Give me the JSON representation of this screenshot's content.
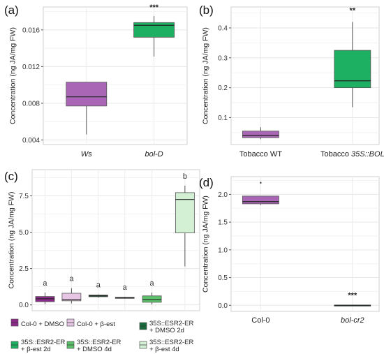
{
  "chart_data": [
    {
      "panel": "(a)",
      "type": "box",
      "ylabel": "Concentration (ng JA/mg FW)",
      "ylim": [
        0.0035,
        0.0185
      ],
      "yticks": [
        0.004,
        0.008,
        0.012,
        0.016
      ],
      "ytick_labels": [
        "0.004",
        "0.008",
        "0.012",
        "0.016"
      ],
      "categories": [
        "Ws",
        "bol-D"
      ],
      "categories_italic": [
        true,
        true
      ],
      "boxes": [
        {
          "min": 0.0046,
          "q1": 0.0077,
          "median": 0.0087,
          "q3": 0.0103,
          "max": 0.0103,
          "color": "#a866b4",
          "outliers": []
        },
        {
          "min": 0.0131,
          "q1": 0.0152,
          "median": 0.0165,
          "q3": 0.0168,
          "max": 0.0175,
          "color": "#1db063",
          "outliers": []
        }
      ],
      "annotations": [
        "",
        "***"
      ]
    },
    {
      "panel": "(b)",
      "type": "box",
      "ylabel": "Concentration (ng JA/mg FW)",
      "ylim": [
        0.01,
        0.47
      ],
      "yticks": [
        0.1,
        0.2,
        0.3,
        0.4
      ],
      "ytick_labels": [
        "0.1",
        "0.2",
        "0.3",
        "0.4"
      ],
      "categories": [
        "Tobacco WT",
        "Tobacco 35S::BOL"
      ],
      "category_parts": [
        [
          {
            "text": "Tobacco WT",
            "italic": false
          }
        ],
        [
          {
            "text": "Tobacco ",
            "italic": false
          },
          {
            "text": "35S::BOL",
            "italic": true
          }
        ]
      ],
      "boxes": [
        {
          "min": 0.028,
          "q1": 0.033,
          "median": 0.04,
          "q3": 0.055,
          "max": 0.068,
          "color": "#a866b4",
          "outliers": []
        },
        {
          "min": 0.135,
          "q1": 0.2,
          "median": 0.223,
          "q3": 0.325,
          "max": 0.42,
          "color": "#1db063",
          "outliers": []
        }
      ],
      "annotations": [
        "",
        "**"
      ]
    },
    {
      "panel": "(c)",
      "type": "box",
      "ylabel": "Concentration (ng JA/mg FW)",
      "ylim": [
        -0.4,
        9.3
      ],
      "yticks": [
        0.0,
        2.5,
        5.0,
        7.5
      ],
      "ytick_labels": [
        "0.0",
        "2.5",
        "5.0",
        "7.5"
      ],
      "categories": [
        "Col-0 + DMSO",
        "Col-0 + β-est",
        "35S::ESR2-ER + DMSO 2d",
        "35S::ESR2-ER + β-est 2d",
        "35S::ESR2-ER + DMSO 4d",
        "35S::ESR2-ER + β-est 4d"
      ],
      "boxes": [
        {
          "min": 0.05,
          "q1": 0.22,
          "median": 0.42,
          "q3": 0.58,
          "max": 0.85,
          "color": "#8c2a8a",
          "outliers": []
        },
        {
          "min": 0.1,
          "q1": 0.28,
          "median": 0.36,
          "q3": 0.8,
          "max": 1.15,
          "color": "#e7c6e5",
          "outliers": []
        },
        {
          "min": 0.5,
          "q1": 0.56,
          "median": 0.62,
          "q3": 0.68,
          "max": 0.72,
          "color": "#176b3a",
          "outliers": []
        },
        {
          "min": 0.43,
          "q1": 0.46,
          "median": 0.49,
          "q3": 0.52,
          "max": 0.55,
          "color": "#1db063",
          "outliers": []
        },
        {
          "min": 0.03,
          "q1": 0.18,
          "median": 0.36,
          "q3": 0.62,
          "max": 0.85,
          "color": "#5dc06a",
          "outliers": []
        },
        {
          "min": 2.65,
          "q1": 4.95,
          "median": 7.25,
          "q3": 7.72,
          "max": 8.2,
          "color": "#d3f0d5",
          "outliers": []
        }
      ],
      "annotations": [
        "a",
        "a",
        "a",
        "a",
        "a",
        "b"
      ],
      "legend": [
        {
          "lines": [
            "Col-0 + DMSO"
          ],
          "color": "#8c2a8a"
        },
        {
          "lines": [
            "Col-0 + β-est"
          ],
          "color": "#e7c6e5"
        },
        {
          "lines": [
            "35S::ESR2-ER",
            "+ DMSO 2d"
          ],
          "color": "#176b3a"
        },
        {
          "lines": [
            "35S::ESR2-ER",
            "+ β-est 2d"
          ],
          "color": "#1db063"
        },
        {
          "lines": [
            "35S::ESR2-ER",
            "+ DMSO 4d"
          ],
          "color": "#5dc06a"
        },
        {
          "lines": [
            "35S::ESR2-ER",
            "+ β-est 4d"
          ],
          "color": "#d3f0d5"
        }
      ]
    },
    {
      "panel": "(d)",
      "type": "box",
      "ylabel": "Concentration (ng JA/mg FW)",
      "ylim": [
        -0.11,
        2.32
      ],
      "yticks": [
        0.0,
        0.5,
        1.0,
        1.5,
        2.0
      ],
      "ytick_labels": [
        "0.0",
        "0.5",
        "1.0",
        "1.5",
        "2.0"
      ],
      "categories": [
        "Col-0",
        "bol-cr2"
      ],
      "categories_italic": [
        false,
        true
      ],
      "boxes": [
        {
          "min": 1.81,
          "q1": 1.83,
          "median": 1.87,
          "q3": 1.97,
          "max": 1.97,
          "color": "#a866b4",
          "outliers": [
            2.21
          ]
        },
        {
          "min": 0.0,
          "q1": 0.0,
          "median": 0.0,
          "q3": 0.005,
          "max": 0.01,
          "color": "#1db063",
          "outliers": []
        }
      ],
      "annotations": [
        "",
        "***"
      ]
    }
  ]
}
